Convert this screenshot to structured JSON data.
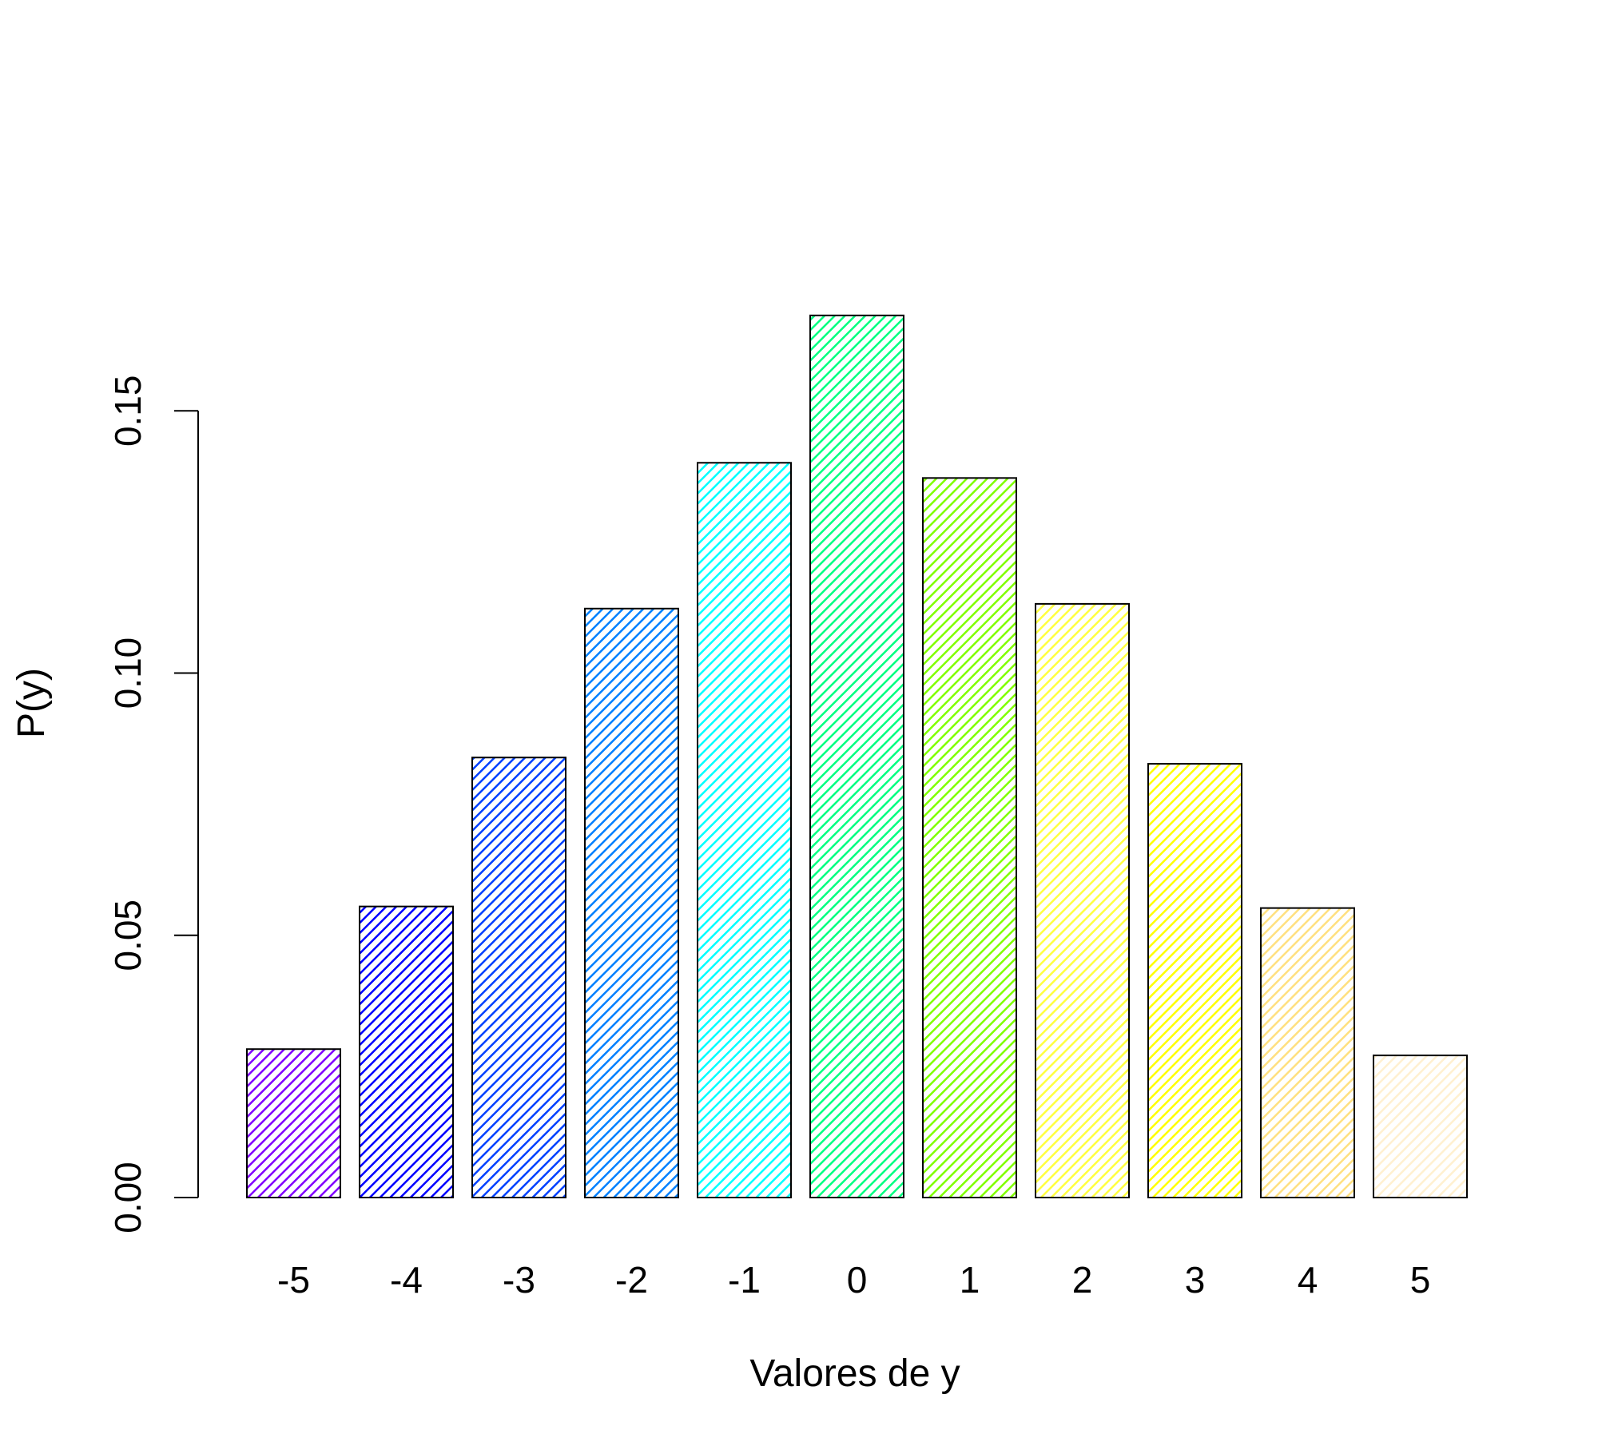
{
  "chart_data": {
    "type": "bar",
    "title": "",
    "xlabel": "Valores de y",
    "ylabel": "P(y)",
    "categories": [
      "-5",
      "-4",
      "-3",
      "-2",
      "-1",
      "0",
      "1",
      "2",
      "3",
      "4",
      "5"
    ],
    "values": [
      0.0283,
      0.0555,
      0.0839,
      0.1123,
      0.1401,
      0.1682,
      0.1372,
      0.1132,
      0.0827,
      0.0552,
      0.0271
    ],
    "bar_colors": [
      "#8000FF",
      "#0000FF",
      "#0040FF",
      "#0080FF",
      "#00FFFF",
      "#00FF80",
      "#80FF00",
      "#FFFF40",
      "#FFFF00",
      "#FFE080",
      "#FFF0D0"
    ],
    "bar_fill": "diagonal hatching",
    "ylim": [
      0,
      0.17
    ],
    "yticks": [
      "0.00",
      "0.05",
      "0.10",
      "0.15"
    ],
    "ytick_values": [
      0,
      0.05,
      0.1,
      0.15
    ],
    "grid": false,
    "legend": "none"
  }
}
